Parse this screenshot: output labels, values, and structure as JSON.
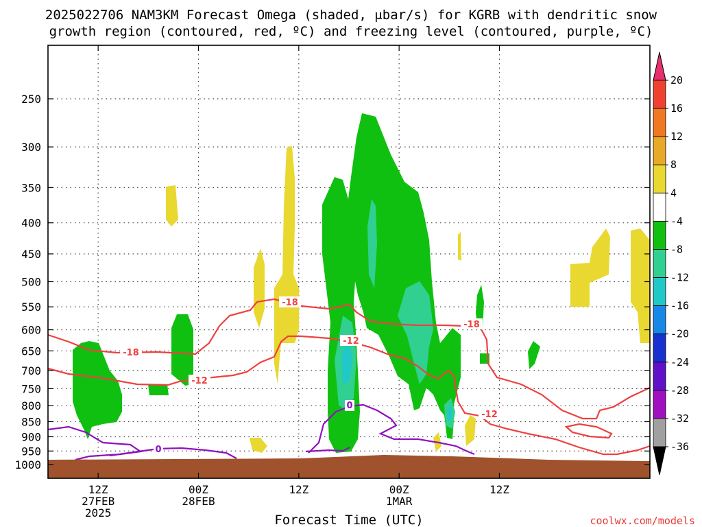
{
  "chart_data": {
    "type": "heatmap",
    "title_line1": "2025022706 NAM3KM Forecast Omega (shaded, μbar/s) for KGRB with dendritic snow",
    "title_line2": "growth region (contoured, red, ºC) and freezing level (contoured, purple, ºC)",
    "xlabel": "Forecast Time (UTC)",
    "credit": "coolwx.com/models",
    "y_scale": "log",
    "y_unit": "hPa",
    "y_ticks": [
      250,
      300,
      350,
      400,
      450,
      500,
      550,
      600,
      650,
      700,
      750,
      800,
      850,
      900,
      950,
      1000
    ],
    "y_range": [
      1050,
      200
    ],
    "x_unit": "forecast hour",
    "x_range": [
      6,
      78
    ],
    "x_ticks": [
      {
        "hour": 12,
        "line1": "12Z",
        "line2": "27FEB",
        "line3": "2025"
      },
      {
        "hour": 24,
        "line1": "00Z",
        "line2": "28FEB",
        "line3": ""
      },
      {
        "hour": 36,
        "line1": "12Z",
        "line2": "",
        "line3": ""
      },
      {
        "hour": 48,
        "line1": "00Z",
        "line2": "1MAR",
        "line3": ""
      },
      {
        "hour": 60,
        "line1": "12Z",
        "line2": "",
        "line3": ""
      }
    ],
    "colorbar": {
      "labels": [
        "20",
        "16",
        "12",
        "8",
        "4",
        "-4",
        "-8",
        "-12",
        "-16",
        "-20",
        "-24",
        "-28",
        "-32",
        "-36"
      ],
      "colors": [
        "#e8306e",
        "#f04030",
        "#f07820",
        "#e8a828",
        "#e8d830",
        "#ffffff",
        "#10c010",
        "#30d090",
        "#20c8c8",
        "#1888e8",
        "#1830d0",
        "#6010c8",
        "#a010c0",
        "#a0a0a0",
        "#000000"
      ]
    },
    "contours": {
      "dendritic_growth": {
        "color": "#f04040",
        "labels": [
          "-18",
          "-12"
        ]
      },
      "freezing_level": {
        "color": "#9010c0",
        "labels": [
          "0"
        ]
      }
    }
  }
}
